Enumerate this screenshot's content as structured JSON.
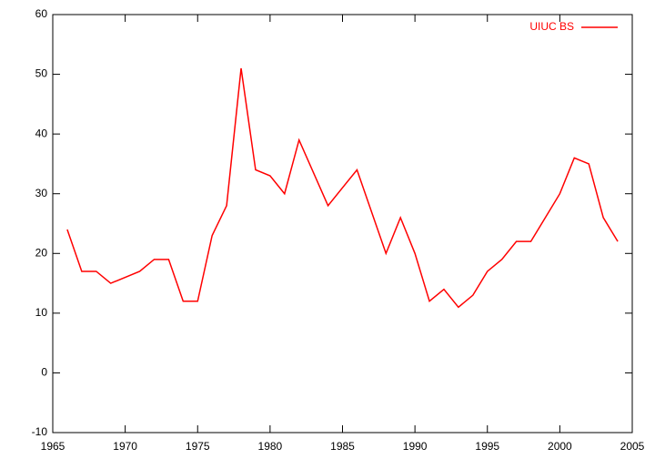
{
  "chart_data": {
    "type": "line",
    "x": [
      1966,
      1967,
      1968,
      1969,
      1971,
      1972,
      1973,
      1974,
      1975,
      1976,
      1977,
      1978,
      1979,
      1980,
      1981,
      1982,
      1984,
      1986,
      1988,
      1989,
      1990,
      1991,
      1992,
      1993,
      1994,
      1995,
      1996,
      1997,
      1998,
      2000,
      2001,
      2002,
      2003,
      2004
    ],
    "series": [
      {
        "name": "UIUC BS",
        "color": "#ff0000",
        "values": [
          24,
          17,
          17,
          15,
          17,
          19,
          19,
          12,
          12,
          23,
          28,
          51,
          34,
          33,
          30,
          39,
          28,
          34,
          20,
          26,
          20,
          12,
          14,
          11,
          13,
          17,
          19,
          22,
          22,
          30,
          36,
          35,
          26,
          22
        ]
      }
    ],
    "xlim": [
      1965,
      2005
    ],
    "xticks": [
      1965,
      1970,
      1975,
      1980,
      1985,
      1990,
      1995,
      2000,
      2005
    ],
    "ylim": [
      -10,
      60
    ],
    "yticks": [
      -10,
      0,
      10,
      20,
      30,
      40,
      50,
      60
    ],
    "legend": "top-right"
  }
}
